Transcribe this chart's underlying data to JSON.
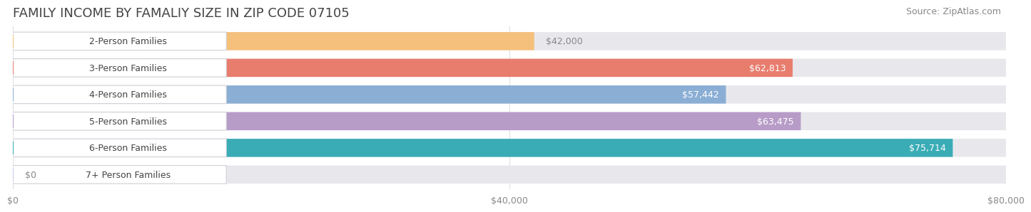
{
  "title": "FAMILY INCOME BY FAMALIY SIZE IN ZIP CODE 07105",
  "source": "Source: ZipAtlas.com",
  "categories": [
    "2-Person Families",
    "3-Person Families",
    "4-Person Families",
    "5-Person Families",
    "6-Person Families",
    "7+ Person Families"
  ],
  "values": [
    42000,
    62813,
    57442,
    63475,
    75714,
    0
  ],
  "labels": [
    "$42,000",
    "$62,813",
    "$57,442",
    "$63,475",
    "$75,714",
    "$0"
  ],
  "bar_colors": [
    "#f5c07c",
    "#e87d6e",
    "#8aaed4",
    "#b89cc8",
    "#3aacb6",
    "#c5cce8"
  ],
  "xmax": 80000,
  "xticks": [
    0,
    40000,
    80000
  ],
  "xticklabels": [
    "$0",
    "$40,000",
    "$80,000"
  ],
  "title_fontsize": 13,
  "source_fontsize": 9,
  "bar_label_fontsize": 9,
  "tick_fontsize": 9,
  "category_fontsize": 9,
  "background_color": "#ffffff",
  "bar_bg_color": "#e8e8ec",
  "label_inside_color": "#ffffff",
  "label_outside_color": "#888888",
  "category_text_color": "#444444",
  "title_color": "#444444"
}
